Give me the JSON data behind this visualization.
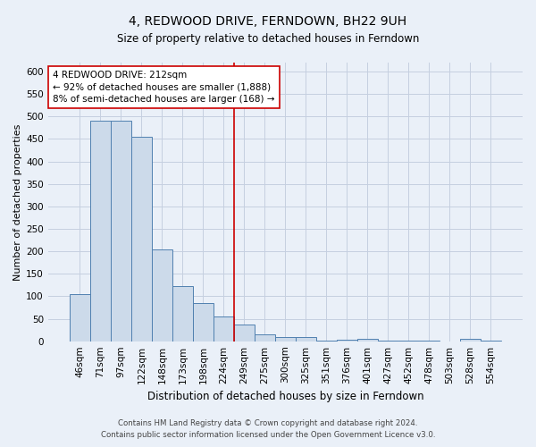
{
  "title": "4, REDWOOD DRIVE, FERNDOWN, BH22 9UH",
  "subtitle": "Size of property relative to detached houses in Ferndown",
  "xlabel": "Distribution of detached houses by size in Ferndown",
  "ylabel": "Number of detached properties",
  "footer_line1": "Contains HM Land Registry data © Crown copyright and database right 2024.",
  "footer_line2": "Contains public sector information licensed under the Open Government Licence v3.0.",
  "bar_labels": [
    "46sqm",
    "71sqm",
    "97sqm",
    "122sqm",
    "148sqm",
    "173sqm",
    "198sqm",
    "224sqm",
    "249sqm",
    "275sqm",
    "300sqm",
    "325sqm",
    "351sqm",
    "376sqm",
    "401sqm",
    "427sqm",
    "452sqm",
    "478sqm",
    "503sqm",
    "528sqm",
    "554sqm"
  ],
  "bar_values": [
    105,
    490,
    490,
    455,
    205,
    122,
    85,
    55,
    38,
    16,
    10,
    10,
    2,
    4,
    5,
    2,
    1,
    1,
    0,
    6,
    2
  ],
  "bar_color": "#ccdaea",
  "bar_edge_color": "#5080b0",
  "grid_color": "#c5cfe0",
  "background_color": "#eaf0f8",
  "vline_color": "#cc0000",
  "vline_pos": 7.5,
  "annotation_text": "4 REDWOOD DRIVE: 212sqm\n← 92% of detached houses are smaller (1,888)\n8% of semi-detached houses are larger (168) →",
  "annotation_box_color": "#ffffff",
  "annotation_box_edge_color": "#cc0000",
  "ylim": [
    0,
    620
  ],
  "yticks": [
    0,
    50,
    100,
    150,
    200,
    250,
    300,
    350,
    400,
    450,
    500,
    550,
    600
  ],
  "title_fontsize": 10,
  "subtitle_fontsize": 8.5,
  "xlabel_fontsize": 8.5,
  "ylabel_fontsize": 8,
  "tick_fontsize": 7.5,
  "annot_fontsize": 7.5,
  "footer_fontsize": 6.2
}
